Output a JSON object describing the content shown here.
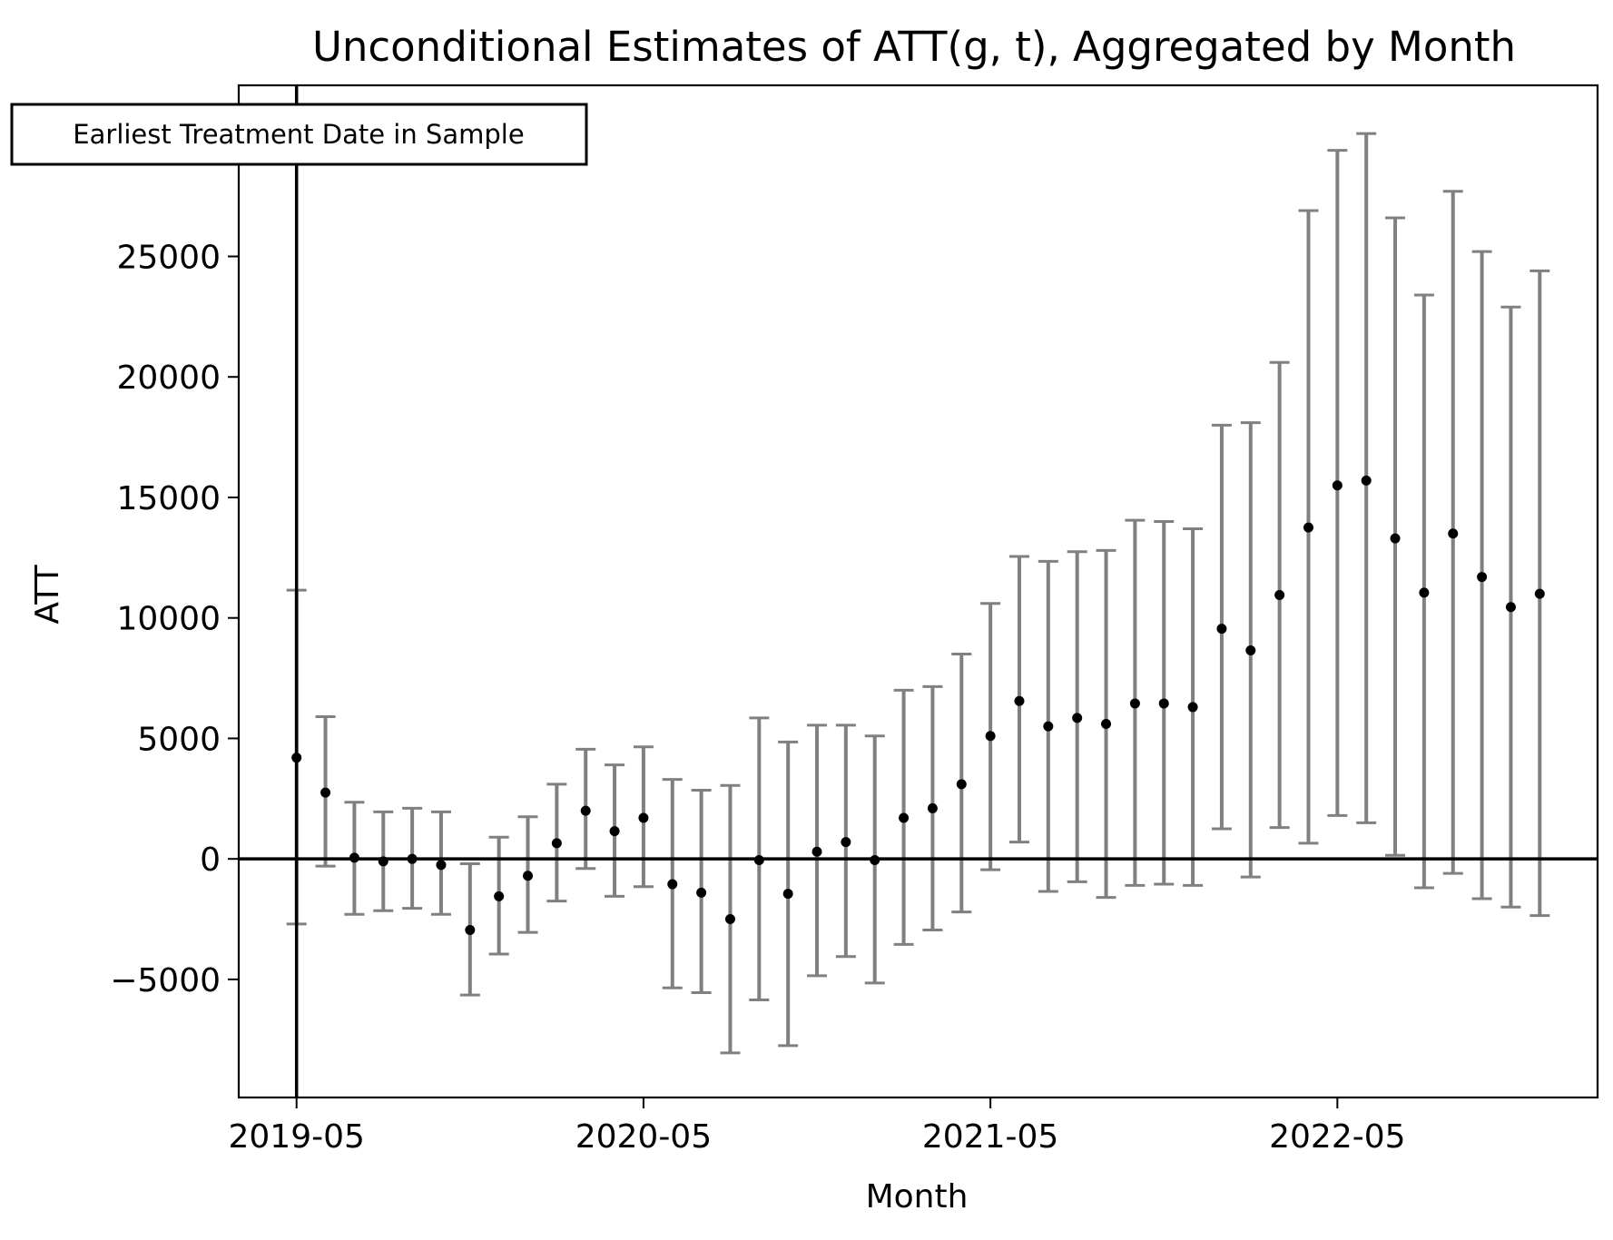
{
  "chart_data": {
    "type": "scatter",
    "title": "Unconditional Estimates of ATT(g, t), Aggregated by Month",
    "xlabel": "Month",
    "ylabel": "ATT",
    "x_tick_labels": [
      "2019-05",
      "2020-05",
      "2021-05",
      "2022-05"
    ],
    "y_ticks": [
      -5000,
      0,
      5000,
      10000,
      15000,
      20000,
      25000
    ],
    "y_tick_labels": [
      "−5000",
      "0",
      "5000",
      "10000",
      "15000",
      "20000",
      "25000"
    ],
    "ylim": [
      -9900,
      32100
    ],
    "xlim": [
      "2019-03",
      "2023-02"
    ],
    "annotation": {
      "text": "Earliest Treatment Date in Sample",
      "x": "2019-05"
    },
    "reference_lines": {
      "horizontal_y": 0,
      "vertical_x": "2019-05"
    },
    "x": [
      "2019-05",
      "2019-06",
      "2019-07",
      "2019-08",
      "2019-09",
      "2019-10",
      "2019-11",
      "2019-12",
      "2020-01",
      "2020-02",
      "2020-03",
      "2020-04",
      "2020-05",
      "2020-06",
      "2020-07",
      "2020-08",
      "2020-09",
      "2020-10",
      "2020-11",
      "2020-12",
      "2021-01",
      "2021-02",
      "2021-03",
      "2021-04",
      "2021-05",
      "2021-06",
      "2021-07",
      "2021-08",
      "2021-09",
      "2021-10",
      "2021-11",
      "2021-12",
      "2022-01",
      "2022-02",
      "2022-03",
      "2022-04",
      "2022-05",
      "2022-06",
      "2022-07",
      "2022-08",
      "2022-09",
      "2022-10",
      "2022-11",
      "2022-12"
    ],
    "att": [
      4200,
      2750,
      50,
      -100,
      0,
      -250,
      -2950,
      -1550,
      -700,
      650,
      2000,
      1150,
      1700,
      -1050,
      -1400,
      -2500,
      -50,
      -1450,
      300,
      700,
      -50,
      1700,
      2100,
      3100,
      5100,
      6550,
      5500,
      5850,
      5600,
      6450,
      6450,
      6300,
      9550,
      8650,
      10950,
      13750,
      15500,
      15700,
      13300,
      11050,
      13500,
      11700,
      10450,
      11000
    ],
    "ci_lower": [
      -2700,
      -300,
      -2300,
      -2150,
      -2050,
      -2300,
      -5650,
      -3950,
      -3050,
      -1750,
      -400,
      -1550,
      -1150,
      -5350,
      -5550,
      -8050,
      -5850,
      -7750,
      -4850,
      -4050,
      -5150,
      -3550,
      -2950,
      -2200,
      -450,
      700,
      -1350,
      -950,
      -1600,
      -1100,
      -1050,
      -1100,
      1250,
      -750,
      1300,
      650,
      1800,
      1500,
      150,
      -1200,
      -600,
      -1650,
      -2000,
      -2350
    ],
    "ci_upper": [
      11150,
      5900,
      2350,
      1950,
      2100,
      1950,
      -200,
      900,
      1750,
      3100,
      4550,
      3900,
      4650,
      3300,
      2850,
      3050,
      5850,
      4850,
      5550,
      5550,
      5100,
      7000,
      7150,
      8500,
      10600,
      12550,
      12350,
      12750,
      12800,
      14050,
      14000,
      13700,
      18000,
      18100,
      20600,
      26900,
      29400,
      30100,
      26600,
      23400,
      27700,
      25200,
      22900,
      24400
    ],
    "colors": {
      "point": "#000000",
      "errorbar": "#808080",
      "reference_line": "#000000"
    },
    "grid": false
  }
}
